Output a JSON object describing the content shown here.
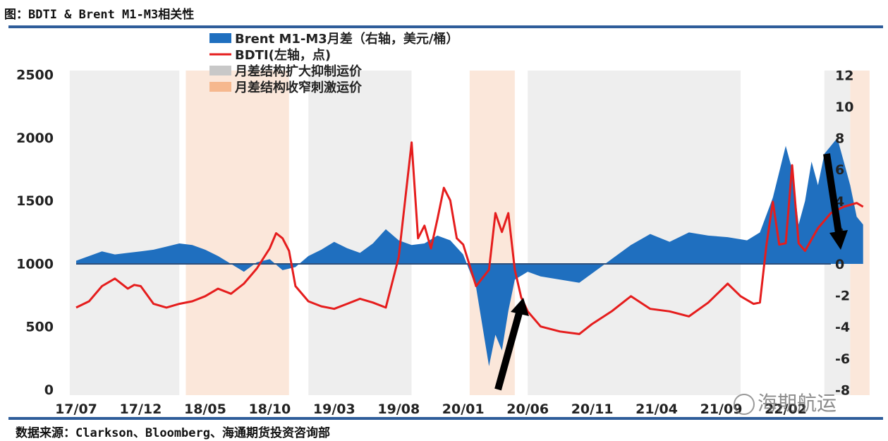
{
  "title": "图：BDTI & Brent M1-M3相关性",
  "source": "数据来源：Clarkson、Bloomberg、海通期货投资咨询部",
  "watermark": "海期航运",
  "colors": {
    "brent": "#1f6fbf",
    "bdti": "#e51d1d",
    "grey_band": "#e8e8e8",
    "orange_band": "#f8d9c4",
    "zero_line": "#2c4f7c",
    "rule": "#2f5d9a",
    "arrow": "#000000"
  },
  "chart_data": {
    "type": "area",
    "x_tick_labels": [
      "17/07",
      "17/12",
      "18/05",
      "18/10",
      "19/03",
      "19/08",
      "20/01",
      "20/06",
      "20/11",
      "21/04",
      "21/09",
      "22/02"
    ],
    "y_left": {
      "ticks": [
        0,
        500,
        1000,
        1500,
        2000,
        2500
      ],
      "range": [
        0,
        2500
      ]
    },
    "y_right": {
      "ticks": [
        -8,
        -6,
        -4,
        -2,
        0,
        2,
        4,
        6,
        8,
        10,
        12
      ],
      "range": [
        -8,
        12
      ]
    },
    "legend": [
      {
        "label": "Brent M1-M3月差（右轴，美元/桶）",
        "kind": "area",
        "color": "#1f6fbf"
      },
      {
        "label": "BDTI(左轴，点)",
        "kind": "line",
        "color": "#e51d1d"
      },
      {
        "label": "月差结构扩大抑制运价",
        "kind": "band",
        "color": "#c8c8c8"
      },
      {
        "label": "月差结构收窄刺激运价",
        "kind": "band",
        "color": "#f6b88e"
      }
    ],
    "bands": [
      {
        "kind": "grey",
        "from": -0.1,
        "to": 1.6
      },
      {
        "kind": "orange",
        "from": 1.7,
        "to": 3.3
      },
      {
        "kind": "grey",
        "from": 3.6,
        "to": 5.2
      },
      {
        "kind": "orange",
        "from": 6.1,
        "to": 6.8
      },
      {
        "kind": "grey",
        "from": 7.0,
        "to": 10.3
      },
      {
        "kind": "grey",
        "from": 11.6,
        "to": 12.0
      },
      {
        "kind": "orange",
        "from": 12.0,
        "to": 12.3
      }
    ],
    "series": [
      {
        "name": "Brent M1-M3月差（右轴，美元/桶）",
        "axis": "right",
        "x": [
          0,
          0.2,
          0.4,
          0.6,
          0.8,
          1.0,
          1.2,
          1.4,
          1.6,
          1.8,
          2.0,
          2.2,
          2.4,
          2.6,
          2.8,
          3.0,
          3.2,
          3.4,
          3.6,
          3.8,
          4.0,
          4.2,
          4.4,
          4.6,
          4.8,
          5.0,
          5.2,
          5.4,
          5.6,
          5.8,
          6.0,
          6.2,
          6.4,
          6.5,
          6.6,
          6.7,
          6.8,
          7.0,
          7.2,
          7.5,
          7.8,
          8.0,
          8.3,
          8.6,
          8.9,
          9.2,
          9.5,
          9.8,
          10.1,
          10.4,
          10.6,
          10.8,
          11.0,
          11.1,
          11.2,
          11.3,
          11.4,
          11.5,
          11.6,
          11.7,
          11.8,
          11.9,
          12.0,
          12.1,
          12.2
        ],
        "values": [
          0.2,
          0.5,
          0.8,
          0.6,
          0.7,
          0.8,
          0.9,
          1.1,
          1.3,
          1.2,
          0.9,
          0.5,
          0.0,
          -0.5,
          0.1,
          0.3,
          -0.4,
          -0.2,
          0.5,
          0.9,
          1.4,
          1.0,
          0.7,
          1.3,
          2.2,
          1.5,
          1.2,
          1.3,
          1.8,
          1.5,
          0.6,
          -1.5,
          -6.5,
          -4.5,
          -5.5,
          -3.0,
          -1.0,
          -0.5,
          -0.8,
          -1.0,
          -1.2,
          -0.6,
          0.3,
          1.2,
          1.9,
          1.4,
          2.0,
          1.8,
          1.7,
          1.5,
          2.0,
          4.2,
          7.5,
          6.0,
          2.5,
          4.0,
          6.5,
          5.0,
          7.0,
          7.5,
          8.0,
          6.5,
          5.0,
          3.0,
          2.5
        ]
      },
      {
        "name": "BDTI(左轴，点)",
        "axis": "left",
        "x": [
          0,
          0.2,
          0.4,
          0.6,
          0.8,
          0.9,
          1.0,
          1.2,
          1.4,
          1.6,
          1.8,
          2.0,
          2.2,
          2.4,
          2.6,
          2.8,
          3.0,
          3.1,
          3.2,
          3.3,
          3.4,
          3.6,
          3.8,
          4.0,
          4.2,
          4.4,
          4.6,
          4.8,
          5.0,
          5.2,
          5.3,
          5.4,
          5.5,
          5.6,
          5.7,
          5.8,
          5.9,
          6.0,
          6.2,
          6.4,
          6.5,
          6.6,
          6.7,
          6.8,
          6.9,
          7.0,
          7.2,
          7.5,
          7.8,
          8.0,
          8.3,
          8.6,
          8.9,
          9.2,
          9.5,
          9.8,
          10.1,
          10.3,
          10.5,
          10.6,
          10.7,
          10.8,
          10.9,
          11.0,
          11.1,
          11.2,
          11.3,
          11.5,
          11.7,
          11.9,
          12.1,
          12.2
        ],
        "values": [
          650,
          700,
          820,
          880,
          800,
          830,
          820,
          680,
          650,
          680,
          700,
          740,
          800,
          760,
          840,
          960,
          1120,
          1240,
          1200,
          1100,
          820,
          700,
          660,
          640,
          680,
          720,
          690,
          650,
          1050,
          1960,
          1200,
          1300,
          1120,
          1350,
          1600,
          1500,
          1200,
          1150,
          820,
          950,
          1400,
          1250,
          1400,
          950,
          730,
          620,
          500,
          460,
          440,
          520,
          620,
          740,
          640,
          620,
          580,
          690,
          840,
          740,
          680,
          690,
          1140,
          1490,
          1150,
          1160,
          1780,
          1160,
          1100,
          1280,
          1400,
          1450,
          1480,
          1450
        ]
      }
    ]
  }
}
